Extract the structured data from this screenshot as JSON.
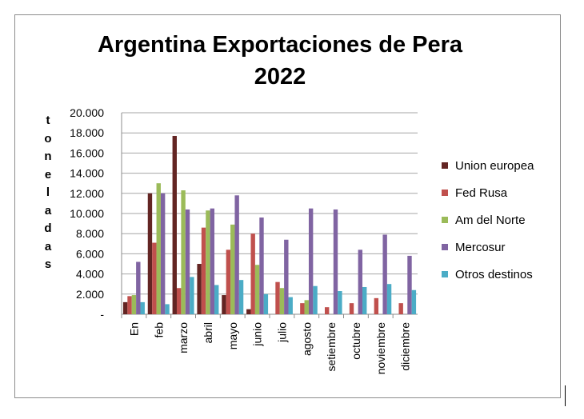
{
  "chart_data": {
    "type": "bar",
    "title_line1": "Argentina  Exportaciones de Pera",
    "title_line2": "2022",
    "ylabel": "toneladas",
    "ylim": [
      0,
      20000
    ],
    "yticks": [
      "-",
      "2.000",
      "4.000",
      "6.000",
      "8.000",
      "10.000",
      "12.000",
      "14.000",
      "16.000",
      "18.000",
      "20.000"
    ],
    "categories": [
      "En",
      "feb",
      "marzo",
      "abril",
      "mayo",
      "junio",
      "julio",
      "agosto",
      "setiembre",
      "octubre",
      "noviembre",
      "diciembre"
    ],
    "series": [
      {
        "name": "Union europea",
        "color": "#632523",
        "values": [
          1200,
          12000,
          17700,
          5000,
          1900,
          500,
          0,
          0,
          0,
          0,
          0,
          0
        ]
      },
      {
        "name": "Fed Rusa",
        "color": "#c0504d",
        "values": [
          1800,
          7100,
          2600,
          8600,
          6400,
          8000,
          3200,
          1100,
          700,
          1100,
          1600,
          1100
        ]
      },
      {
        "name": "Am del Norte",
        "color": "#9bbb59",
        "values": [
          1900,
          13000,
          12300,
          10300,
          8900,
          4900,
          2600,
          1400,
          0,
          0,
          0,
          0
        ]
      },
      {
        "name": "Mercosur",
        "color": "#8064a2",
        "values": [
          5200,
          12000,
          10400,
          10500,
          11800,
          9600,
          7400,
          10500,
          10400,
          6400,
          7900,
          5800
        ]
      },
      {
        "name": "Otros destinos",
        "color": "#4bacc6",
        "values": [
          1200,
          1000,
          3700,
          2900,
          3400,
          2000,
          1700,
          2800,
          2300,
          2700,
          3000,
          2400
        ]
      }
    ],
    "grid": true,
    "legend_position": "right"
  }
}
